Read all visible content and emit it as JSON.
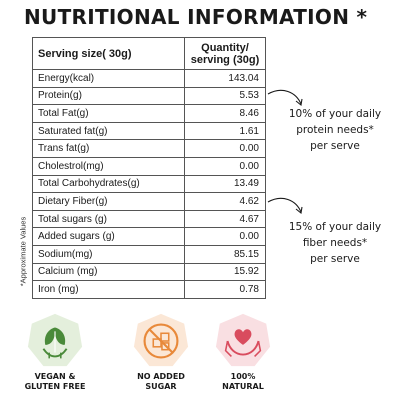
{
  "title": "NUTRITIONAL INFORMATION *",
  "table": {
    "header_serving": "Serving size( 30g)",
    "header_quantity_line1": "Quantity/",
    "header_quantity_line2": "serving (30g)",
    "rows": [
      {
        "label": "Energy(kcal)",
        "value": "143.04"
      },
      {
        "label": "Protein(g)",
        "value": "5.53"
      },
      {
        "label": "Total Fat(g)",
        "value": "8.46"
      },
      {
        "label": "Saturated fat(g)",
        "value": "1.61"
      },
      {
        "label": "Trans fat(g)",
        "value": "0.00"
      },
      {
        "label": "Cholestrol(mg)",
        "value": "0.00"
      },
      {
        "label": "Total Carbohydrates(g)",
        "value": "13.49"
      },
      {
        "label": "Dietary  Fiber(g)",
        "value": "4.62"
      },
      {
        "label": "Total sugars (g)",
        "value": "4.67"
      },
      {
        "label": "Added sugars (g)",
        "value": "0.00"
      },
      {
        "label": "Sodium(mg)",
        "value": "85.15"
      },
      {
        "label": "Calcium (mg)",
        "value": "15.92"
      },
      {
        "label": "Iron (mg)",
        "value": "0.78"
      }
    ]
  },
  "side_label": "*Approximate Values",
  "callouts": {
    "protein": [
      "10% of your daily",
      "protein needs*",
      "per serve"
    ],
    "fiber": [
      "15% of your daily",
      "fiber needs*",
      "per serve"
    ]
  },
  "badges": [
    {
      "line1": "VEGAN &",
      "line2": "GLUTEN FREE",
      "icon": "vegan-leaf-icon",
      "color": "#4a8a3a"
    },
    {
      "line1": "NO ADDED",
      "line2": "SUGAR",
      "icon": "no-sugar-icon",
      "color": "#e8893a"
    },
    {
      "line1": "100%",
      "line2": "NATURAL",
      "icon": "heart-hands-icon",
      "color": "#d94c5e"
    }
  ]
}
